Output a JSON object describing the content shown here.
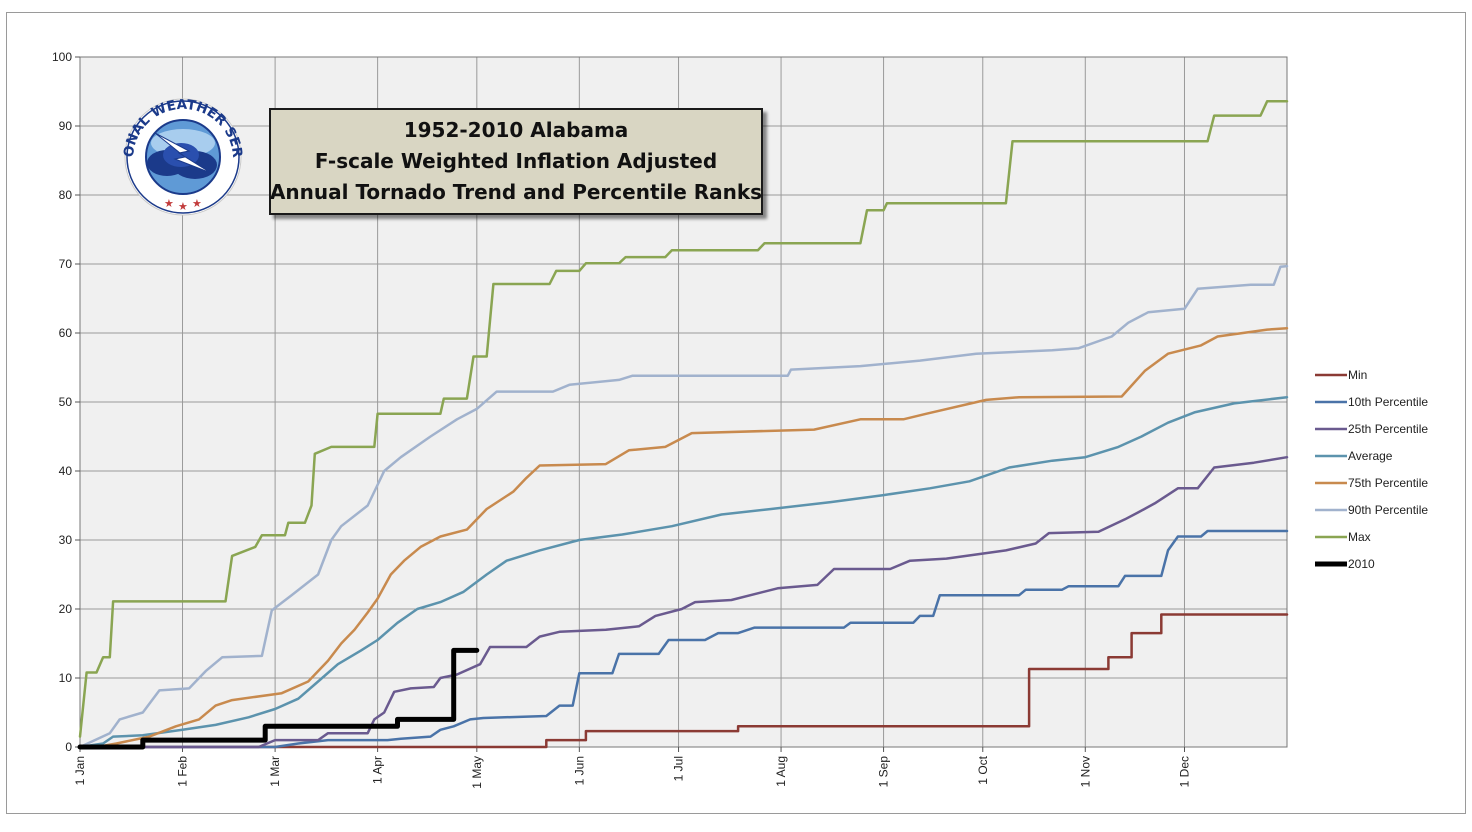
{
  "chart_data": {
    "type": "line",
    "title": [
      "1952-2010 Alabama",
      "F-scale Weighted Inflation Adjusted",
      "Annual Tornado Trend and Percentile Ranks"
    ],
    "logo_text": "NATIONAL WEATHER SERVICE",
    "xlabel": "",
    "ylabel": "",
    "x_unit": "day of year",
    "x_ticks": [
      {
        "label": "1 Jan",
        "day": 1
      },
      {
        "label": "1 Feb",
        "day": 32
      },
      {
        "label": "1 Mar",
        "day": 60
      },
      {
        "label": "1 Apr",
        "day": 91
      },
      {
        "label": "1 May",
        "day": 121
      },
      {
        "label": "1 Jun",
        "day": 152
      },
      {
        "label": "1 Jul",
        "day": 182
      },
      {
        "label": "1 Aug",
        "day": 213
      },
      {
        "label": "1 Sep",
        "day": 244
      },
      {
        "label": "1 Oct",
        "day": 274
      },
      {
        "label": "1 Nov",
        "day": 305
      },
      {
        "label": "1 Dec",
        "day": 335
      }
    ],
    "xlim": [
      1,
      366
    ],
    "ylim": [
      0,
      100
    ],
    "y_ticks": [
      0,
      10,
      20,
      30,
      40,
      50,
      60,
      70,
      80,
      90,
      100
    ],
    "grid": true,
    "legend_position": "right",
    "series": [
      {
        "name": "Min",
        "color": "#8b3a34",
        "width": 2.5,
        "points": [
          [
            1,
            0
          ],
          [
            142,
            0
          ],
          [
            142,
            1
          ],
          [
            154,
            1
          ],
          [
            154,
            2.3
          ],
          [
            200,
            2.3
          ],
          [
            200,
            3
          ],
          [
            288,
            3
          ],
          [
            288,
            11.3
          ],
          [
            312,
            11.3
          ],
          [
            312,
            13
          ],
          [
            319,
            13
          ],
          [
            319,
            16.5
          ],
          [
            328,
            16.5
          ],
          [
            328,
            19.2
          ],
          [
            366,
            19.2
          ]
        ]
      },
      {
        "name": "10th Percentile",
        "color": "#4a73a8",
        "width": 2.5,
        "points": [
          [
            1,
            0
          ],
          [
            60,
            0
          ],
          [
            67,
            0.5
          ],
          [
            76,
            1
          ],
          [
            94,
            1
          ],
          [
            98,
            1.2
          ],
          [
            107,
            1.5
          ],
          [
            110,
            2.5
          ],
          [
            114,
            3
          ],
          [
            119,
            4
          ],
          [
            123,
            4.2
          ],
          [
            142,
            4.5
          ],
          [
            146,
            6
          ],
          [
            150,
            6
          ],
          [
            152,
            10.7
          ],
          [
            162,
            10.7
          ],
          [
            164,
            13.5
          ],
          [
            176,
            13.5
          ],
          [
            179,
            15.5
          ],
          [
            190,
            15.5
          ],
          [
            194,
            16.5
          ],
          [
            200,
            16.5
          ],
          [
            205,
            17.3
          ],
          [
            232,
            17.3
          ],
          [
            234,
            18
          ],
          [
            253,
            18
          ],
          [
            255,
            19
          ],
          [
            259,
            19
          ],
          [
            261,
            22
          ],
          [
            285,
            22
          ],
          [
            287,
            22.8
          ],
          [
            298,
            22.8
          ],
          [
            300,
            23.3
          ],
          [
            315,
            23.3
          ],
          [
            317,
            24.8
          ],
          [
            328,
            24.8
          ],
          [
            330,
            28.5
          ],
          [
            333,
            30.5
          ],
          [
            340,
            30.5
          ],
          [
            342,
            31.3
          ],
          [
            366,
            31.3
          ]
        ]
      },
      {
        "name": "25th Percentile",
        "color": "#6a5a8f",
        "width": 2.5,
        "points": [
          [
            1,
            0
          ],
          [
            55,
            0
          ],
          [
            60,
            1
          ],
          [
            73,
            1
          ],
          [
            76,
            2
          ],
          [
            88,
            2
          ],
          [
            90,
            4
          ],
          [
            93,
            5
          ],
          [
            96,
            8
          ],
          [
            101,
            8.5
          ],
          [
            108,
            8.7
          ],
          [
            110,
            10
          ],
          [
            115,
            10.5
          ],
          [
            122,
            12
          ],
          [
            125,
            14.5
          ],
          [
            136,
            14.5
          ],
          [
            140,
            16
          ],
          [
            146,
            16.7
          ],
          [
            160,
            17
          ],
          [
            170,
            17.5
          ],
          [
            175,
            19
          ],
          [
            183,
            20
          ],
          [
            187,
            21
          ],
          [
            198,
            21.3
          ],
          [
            212,
            23
          ],
          [
            224,
            23.5
          ],
          [
            229,
            25.8
          ],
          [
            246,
            25.8
          ],
          [
            252,
            27
          ],
          [
            263,
            27.3
          ],
          [
            281,
            28.5
          ],
          [
            290,
            29.5
          ],
          [
            294,
            31
          ],
          [
            309,
            31.2
          ],
          [
            317,
            33
          ],
          [
            321,
            34
          ],
          [
            326,
            35.3
          ],
          [
            333,
            37.5
          ],
          [
            339,
            37.5
          ],
          [
            344,
            40.5
          ],
          [
            356,
            41.2
          ],
          [
            366,
            42
          ]
        ]
      },
      {
        "name": "Average",
        "color": "#5c93ad",
        "width": 2.5,
        "points": [
          [
            1,
            0
          ],
          [
            8,
            0.5
          ],
          [
            11,
            1.5
          ],
          [
            20,
            1.7
          ],
          [
            32,
            2.5
          ],
          [
            42,
            3.2
          ],
          [
            52,
            4.3
          ],
          [
            60,
            5.5
          ],
          [
            67,
            7
          ],
          [
            73,
            9.5
          ],
          [
            79,
            12
          ],
          [
            86,
            14
          ],
          [
            91,
            15.5
          ],
          [
            97,
            18
          ],
          [
            103,
            20
          ],
          [
            110,
            21
          ],
          [
            117,
            22.5
          ],
          [
            124,
            25
          ],
          [
            130,
            27
          ],
          [
            140,
            28.5
          ],
          [
            152,
            30
          ],
          [
            165,
            30.8
          ],
          [
            180,
            32
          ],
          [
            195,
            33.7
          ],
          [
            210,
            34.5
          ],
          [
            228,
            35.5
          ],
          [
            244,
            36.5
          ],
          [
            258,
            37.5
          ],
          [
            270,
            38.5
          ],
          [
            282,
            40.5
          ],
          [
            295,
            41.5
          ],
          [
            305,
            42
          ],
          [
            315,
            43.5
          ],
          [
            322,
            45
          ],
          [
            330,
            47
          ],
          [
            338,
            48.5
          ],
          [
            350,
            49.8
          ],
          [
            366,
            50.7
          ]
        ]
      },
      {
        "name": "75th Percentile",
        "color": "#c88a4e",
        "width": 2.5,
        "points": [
          [
            1,
            0
          ],
          [
            6,
            0
          ],
          [
            12,
            0.5
          ],
          [
            22,
            1.5
          ],
          [
            30,
            3
          ],
          [
            37,
            4
          ],
          [
            42,
            6
          ],
          [
            47,
            6.8
          ],
          [
            62,
            7.8
          ],
          [
            70,
            9.5
          ],
          [
            76,
            12.5
          ],
          [
            80,
            15
          ],
          [
            84,
            17
          ],
          [
            88,
            19.5
          ],
          [
            91,
            21.5
          ],
          [
            95,
            25
          ],
          [
            99,
            27
          ],
          [
            104,
            29
          ],
          [
            110,
            30.5
          ],
          [
            118,
            31.5
          ],
          [
            124,
            34.5
          ],
          [
            132,
            37
          ],
          [
            136,
            39
          ],
          [
            140,
            40.8
          ],
          [
            160,
            41
          ],
          [
            167,
            43
          ],
          [
            178,
            43.5
          ],
          [
            186,
            45.5
          ],
          [
            223,
            46
          ],
          [
            237,
            47.5
          ],
          [
            250,
            47.5
          ],
          [
            257,
            48.3
          ],
          [
            275,
            50.3
          ],
          [
            285,
            50.7
          ],
          [
            316,
            50.8
          ],
          [
            323,
            54.5
          ],
          [
            330,
            57
          ],
          [
            340,
            58.2
          ],
          [
            345,
            59.5
          ],
          [
            360,
            60.5
          ],
          [
            366,
            60.7
          ]
        ]
      },
      {
        "name": "90th Percentile",
        "color": "#a1b2cd",
        "width": 2.5,
        "points": [
          [
            1,
            0
          ],
          [
            10,
            2
          ],
          [
            13,
            4
          ],
          [
            20,
            5
          ],
          [
            25,
            8.2
          ],
          [
            34,
            8.5
          ],
          [
            39,
            11
          ],
          [
            44,
            13
          ],
          [
            56,
            13.2
          ],
          [
            59,
            19.8
          ],
          [
            65,
            22
          ],
          [
            73,
            25
          ],
          [
            77,
            30
          ],
          [
            80,
            32
          ],
          [
            88,
            35
          ],
          [
            93,
            40
          ],
          [
            98,
            42
          ],
          [
            107,
            45
          ],
          [
            115,
            47.5
          ],
          [
            121,
            49
          ],
          [
            127,
            51.5
          ],
          [
            144,
            51.5
          ],
          [
            149,
            52.5
          ],
          [
            164,
            53.2
          ],
          [
            168,
            53.8
          ],
          [
            215,
            53.8
          ],
          [
            216,
            54.7
          ],
          [
            237,
            55.2
          ],
          [
            255,
            56
          ],
          [
            272,
            57
          ],
          [
            295,
            57.5
          ],
          [
            303,
            57.8
          ],
          [
            313,
            59.5
          ],
          [
            318,
            61.5
          ],
          [
            324,
            63
          ],
          [
            335,
            63.5
          ],
          [
            339,
            66.4
          ],
          [
            355,
            67
          ],
          [
            362,
            67
          ],
          [
            364,
            69.6
          ],
          [
            366,
            69.7
          ]
        ]
      },
      {
        "name": "Max",
        "color": "#8aa552",
        "width": 2.5,
        "points": [
          [
            1,
            1.5
          ],
          [
            3,
            10.8
          ],
          [
            6,
            10.8
          ],
          [
            8,
            13
          ],
          [
            10,
            13
          ],
          [
            11,
            21.1
          ],
          [
            45,
            21.1
          ],
          [
            47,
            27.7
          ],
          [
            54,
            29
          ],
          [
            56,
            30.7
          ],
          [
            63,
            30.7
          ],
          [
            64,
            32.5
          ],
          [
            69,
            32.5
          ],
          [
            71,
            35
          ],
          [
            72,
            42.5
          ],
          [
            77,
            43.5
          ],
          [
            90,
            43.5
          ],
          [
            91,
            48.3
          ],
          [
            110,
            48.3
          ],
          [
            111,
            50.5
          ],
          [
            118,
            50.5
          ],
          [
            120,
            56.6
          ],
          [
            124,
            56.6
          ],
          [
            126,
            67.1
          ],
          [
            143,
            67.1
          ],
          [
            145,
            69
          ],
          [
            152,
            69
          ],
          [
            154,
            70.1
          ],
          [
            164,
            70.1
          ],
          [
            166,
            71
          ],
          [
            178,
            71
          ],
          [
            180,
            72
          ],
          [
            206,
            72
          ],
          [
            208,
            73
          ],
          [
            237,
            73
          ],
          [
            239,
            77.8
          ],
          [
            244,
            77.8
          ],
          [
            245,
            78.8
          ],
          [
            281,
            78.8
          ],
          [
            283,
            87.8
          ],
          [
            342,
            87.8
          ],
          [
            344,
            91.5
          ],
          [
            358,
            91.5
          ],
          [
            360,
            93.6
          ],
          [
            366,
            93.6
          ]
        ]
      },
      {
        "name": "2010",
        "color": "#000000",
        "width": 5,
        "points": [
          [
            1,
            0
          ],
          [
            20,
            0
          ],
          [
            20,
            1
          ],
          [
            57,
            1
          ],
          [
            57,
            3
          ],
          [
            97,
            3
          ],
          [
            97,
            4
          ],
          [
            114,
            4
          ],
          [
            114,
            14
          ],
          [
            121,
            14
          ]
        ]
      }
    ]
  }
}
